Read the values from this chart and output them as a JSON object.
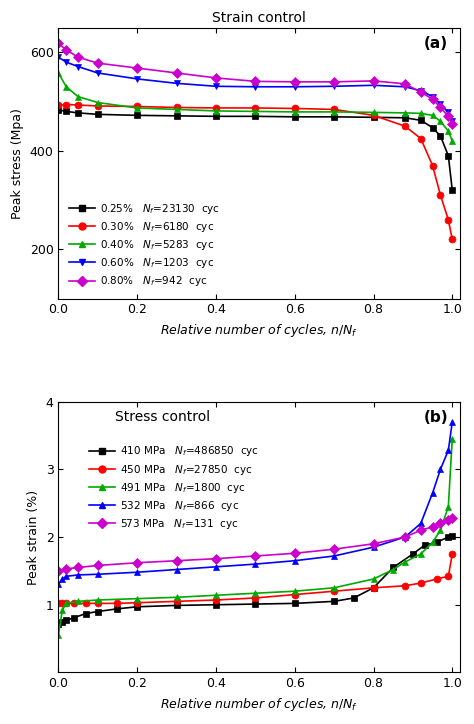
{
  "panel_a": {
    "title": "Strain control",
    "label": "(a)",
    "ylabel": "Peak stress (Mpa)",
    "xlabel": "Relative number of cycles, $n/N_f$",
    "ylim": [
      100,
      650
    ],
    "xlim": [
      0.0,
      1.02
    ],
    "yticks": [
      200,
      400,
      600
    ],
    "xticks": [
      0.0,
      0.2,
      0.4,
      0.6,
      0.8,
      1.0
    ],
    "series": [
      {
        "label": "0.25%",
        "Nr": "23130",
        "color": "#000000",
        "marker": "s",
        "x": [
          0.0,
          0.02,
          0.05,
          0.1,
          0.2,
          0.3,
          0.4,
          0.5,
          0.6,
          0.7,
          0.8,
          0.88,
          0.92,
          0.95,
          0.97,
          0.99,
          1.0
        ],
        "y": [
          483,
          480,
          477,
          474,
          472,
          471,
          470,
          470,
          469,
          469,
          468,
          467,
          462,
          447,
          430,
          390,
          320
        ]
      },
      {
        "label": "0.30%",
        "Nr": "6180",
        "color": "#ff0000",
        "marker": "o",
        "x": [
          0.0,
          0.02,
          0.05,
          0.1,
          0.2,
          0.3,
          0.4,
          0.5,
          0.6,
          0.7,
          0.8,
          0.88,
          0.92,
          0.95,
          0.97,
          0.99,
          1.0
        ],
        "y": [
          493,
          494,
          493,
          491,
          490,
          488,
          487,
          487,
          486,
          484,
          472,
          450,
          425,
          370,
          310,
          260,
          220
        ]
      },
      {
        "label": "0.40%",
        "Nr": "5283",
        "color": "#00aa00",
        "marker": "^",
        "x": [
          0.0,
          0.02,
          0.05,
          0.1,
          0.2,
          0.3,
          0.4,
          0.5,
          0.6,
          0.7,
          0.8,
          0.88,
          0.92,
          0.95,
          0.97,
          0.99,
          1.0
        ],
        "y": [
          558,
          530,
          510,
          498,
          487,
          484,
          481,
          480,
          479,
          479,
          478,
          477,
          476,
          472,
          460,
          440,
          420
        ]
      },
      {
        "label": "0.60%",
        "Nr": "1203",
        "color": "#0000ff",
        "marker": "v",
        "x": [
          0.0,
          0.02,
          0.05,
          0.1,
          0.2,
          0.3,
          0.4,
          0.5,
          0.6,
          0.7,
          0.8,
          0.88,
          0.92,
          0.95,
          0.97,
          0.99,
          1.0
        ],
        "y": [
          590,
          580,
          571,
          558,
          546,
          537,
          531,
          530,
          530,
          531,
          533,
          530,
          522,
          510,
          495,
          478,
          460
        ]
      },
      {
        "label": "0.80%",
        "Nr": "942",
        "color": "#cc00cc",
        "marker": "D",
        "x": [
          0.0,
          0.02,
          0.05,
          0.1,
          0.2,
          0.3,
          0.4,
          0.5,
          0.6,
          0.7,
          0.8,
          0.88,
          0.92,
          0.95,
          0.97,
          0.99,
          1.0
        ],
        "y": [
          618,
          605,
          590,
          578,
          568,
          558,
          548,
          541,
          540,
          540,
          542,
          536,
          519,
          505,
          488,
          470,
          455
        ]
      }
    ]
  },
  "panel_b": {
    "title": "Stress control",
    "label": "(b)",
    "ylabel": "Peak strain (%)",
    "xlabel": "Relative number of cycles, $n/N_f$",
    "ylim": [
      0.0,
      4.0
    ],
    "xlim": [
      0.0,
      1.02
    ],
    "yticks": [
      1,
      2,
      3,
      4
    ],
    "xticks": [
      0.0,
      0.2,
      0.4,
      0.6,
      0.8,
      1.0
    ],
    "series": [
      {
        "label": "410 MPa",
        "Nr": "486850",
        "color": "#000000",
        "marker": "s",
        "x": [
          0.0,
          0.01,
          0.02,
          0.04,
          0.07,
          0.1,
          0.15,
          0.2,
          0.3,
          0.4,
          0.5,
          0.6,
          0.7,
          0.75,
          0.8,
          0.85,
          0.9,
          0.93,
          0.96,
          0.99,
          1.0
        ],
        "y": [
          0.72,
          0.74,
          0.77,
          0.81,
          0.87,
          0.9,
          0.94,
          0.97,
          0.99,
          1.0,
          1.01,
          1.02,
          1.05,
          1.1,
          1.25,
          1.55,
          1.75,
          1.88,
          1.92,
          2.0,
          2.02
        ]
      },
      {
        "label": "450 MPa",
        "Nr": "27850",
        "color": "#ff0000",
        "marker": "o",
        "x": [
          0.0,
          0.01,
          0.02,
          0.04,
          0.07,
          0.1,
          0.15,
          0.2,
          0.3,
          0.4,
          0.5,
          0.6,
          0.7,
          0.8,
          0.88,
          0.92,
          0.96,
          0.99,
          1.0
        ],
        "y": [
          1.02,
          1.02,
          1.02,
          1.02,
          1.02,
          1.02,
          1.02,
          1.03,
          1.05,
          1.07,
          1.1,
          1.15,
          1.2,
          1.25,
          1.28,
          1.32,
          1.38,
          1.42,
          1.75
        ]
      },
      {
        "label": "491 MPa",
        "Nr": "1800",
        "color": "#00aa00",
        "marker": "^",
        "x": [
          0.0,
          0.01,
          0.02,
          0.05,
          0.1,
          0.2,
          0.3,
          0.4,
          0.5,
          0.6,
          0.7,
          0.8,
          0.85,
          0.88,
          0.92,
          0.95,
          0.97,
          0.99,
          1.0
        ],
        "y": [
          0.55,
          0.92,
          1.02,
          1.05,
          1.07,
          1.09,
          1.11,
          1.14,
          1.17,
          1.2,
          1.25,
          1.38,
          1.52,
          1.63,
          1.75,
          1.92,
          2.1,
          2.45,
          3.45
        ]
      },
      {
        "label": "532 MPa",
        "Nr": "866",
        "color": "#0000ff",
        "marker": "^",
        "x": [
          0.0,
          0.01,
          0.02,
          0.05,
          0.1,
          0.2,
          0.3,
          0.4,
          0.5,
          0.6,
          0.7,
          0.8,
          0.88,
          0.92,
          0.95,
          0.97,
          0.99,
          1.0
        ],
        "y": [
          1.3,
          1.38,
          1.42,
          1.44,
          1.45,
          1.48,
          1.52,
          1.56,
          1.6,
          1.65,
          1.72,
          1.85,
          2.0,
          2.2,
          2.65,
          3.0,
          3.28,
          3.7
        ]
      },
      {
        "label": "573 MPa",
        "Nr": "131",
        "color": "#cc00cc",
        "marker": "D",
        "x": [
          0.0,
          0.02,
          0.05,
          0.1,
          0.2,
          0.3,
          0.4,
          0.5,
          0.6,
          0.7,
          0.8,
          0.88,
          0.92,
          0.95,
          0.97,
          0.99,
          1.0
        ],
        "y": [
          1.5,
          1.53,
          1.55,
          1.58,
          1.62,
          1.65,
          1.68,
          1.72,
          1.76,
          1.82,
          1.9,
          2.0,
          2.1,
          2.15,
          2.2,
          2.25,
          2.28
        ]
      }
    ]
  },
  "figure": {
    "figsize": [
      4.74,
      7.24
    ],
    "dpi": 100,
    "hspace": 0.38
  }
}
